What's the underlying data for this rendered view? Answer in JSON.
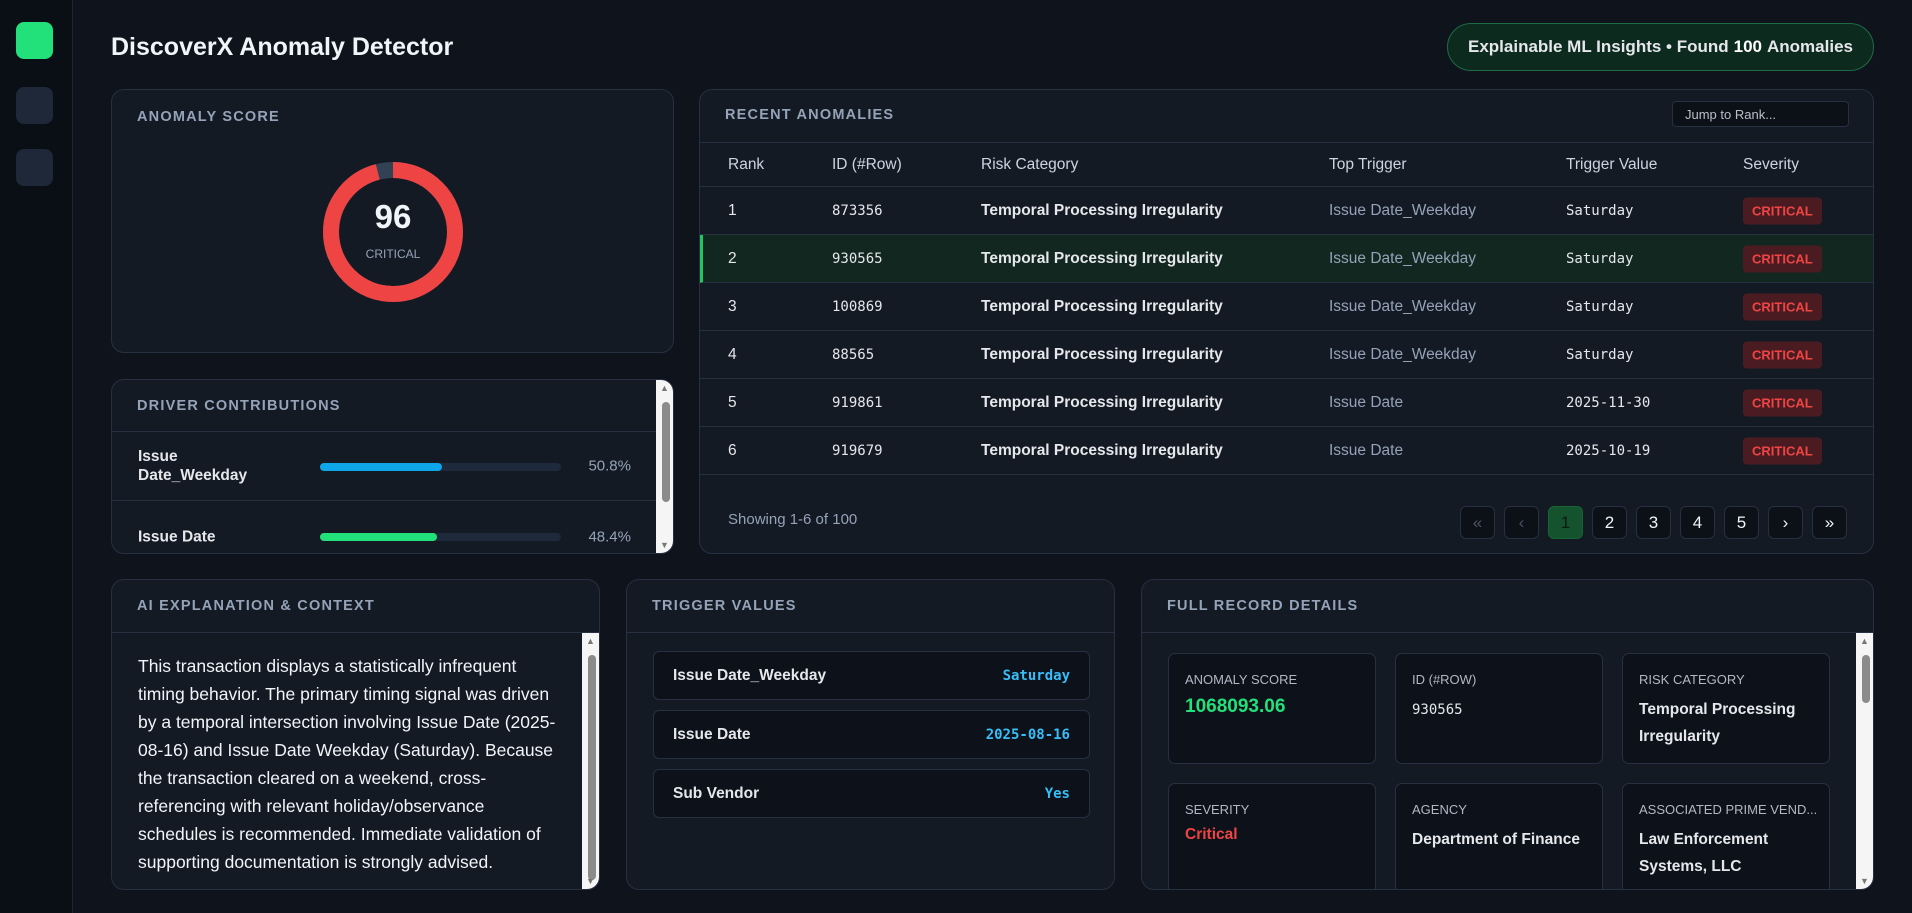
{
  "header": {
    "title": "DiscoverX Anomaly Detector",
    "badge": {
      "prefix": "Explainable ML Insights • Found",
      "count": "100",
      "suffix": "Anomalies"
    }
  },
  "score_panel": {
    "title": "ANOMALY SCORE",
    "score": 96,
    "label": "CRITICAL"
  },
  "drivers": {
    "title": "DRIVER CONTRIBUTIONS",
    "items": [
      {
        "name": "Issue Date_Weekday",
        "value": 50.8,
        "label": "50.8%"
      },
      {
        "name": "Issue Date",
        "value": 48.4,
        "label": "48.4%"
      }
    ]
  },
  "recent": {
    "title": "RECENT ANOMALIES",
    "search_placeholder": "Jump to Rank...",
    "columns": [
      "Rank",
      "ID (#Row)",
      "Risk Category",
      "Top Trigger",
      "Trigger Value",
      "Severity"
    ],
    "rows": [
      [
        "1",
        "873356",
        "Temporal Processing Irregularity",
        "Issue Date_Weekday",
        "Saturday",
        "CRITICAL"
      ],
      [
        "2",
        "930565",
        "Temporal Processing Irregularity",
        "Issue Date_Weekday",
        "Saturday",
        "CRITICAL"
      ],
      [
        "3",
        "100869",
        "Temporal Processing Irregularity",
        "Issue Date_Weekday",
        "Saturday",
        "CRITICAL"
      ],
      [
        "4",
        "88565",
        "Temporal Processing Irregularity",
        "Issue Date_Weekday",
        "Saturday",
        "CRITICAL"
      ],
      [
        "5",
        "919861",
        "Temporal Processing Irregularity",
        "Issue Date",
        "2025-11-30",
        "CRITICAL"
      ],
      [
        "6",
        "919679",
        "Temporal Processing Irregularity",
        "Issue Date",
        "2025-10-19",
        "CRITICAL"
      ]
    ],
    "footer": "Showing 1-6 of 100",
    "pagination": [
      "«",
      "‹",
      "1",
      "2",
      "3",
      "4",
      "5",
      "›",
      "»"
    ]
  },
  "explanation": {
    "title": "AI EXPLANATION & CONTEXT",
    "text": "This transaction displays a statistically infrequent timing behavior. The primary timing signal was driven by a temporal intersection involving Issue Date (2025-08-16) and Issue Date Weekday (Saturday). Because the transaction cleared on a weekend, cross-referencing with relevant holiday/observance schedules is recommended. Immediate validation of supporting documentation is strongly advised."
  },
  "triggers": {
    "title": "TRIGGER VALUES",
    "items": [
      {
        "name": "Issue Date_Weekday",
        "value": "Saturday"
      },
      {
        "name": "Issue Date",
        "value": "2025-08-16"
      },
      {
        "name": "Sub Vendor",
        "value": "Yes"
      }
    ]
  },
  "record": {
    "title": "FULL RECORD DETAILS",
    "fields": [
      {
        "label": "ANOMALY SCORE",
        "value": "1068093.06"
      },
      {
        "label": "ID (#ROW)",
        "value": "930565"
      },
      {
        "label": "RISK CATEGORY",
        "value": "Temporal Processing Irregularity"
      },
      {
        "label": "SEVERITY",
        "value": "Critical"
      },
      {
        "label": "AGENCY",
        "value": "Department of Finance"
      },
      {
        "label": "ASSOCIATED PRIME VEND...",
        "value": "Law Enforcement Systems, LLC"
      }
    ]
  }
}
